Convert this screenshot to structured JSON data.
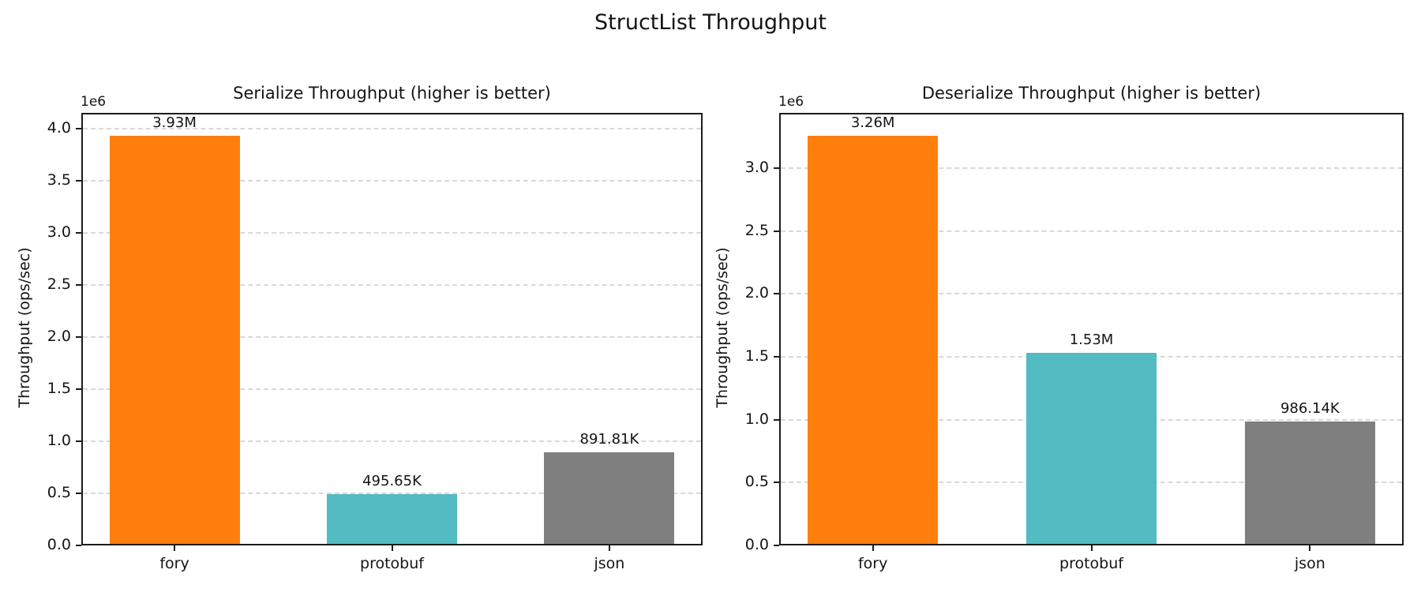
{
  "figure": {
    "title": "StructList Throughput"
  },
  "chart_data": [
    {
      "type": "bar",
      "title": "Serialize Throughput (higher is better)",
      "categories": [
        "fory",
        "protobuf",
        "json"
      ],
      "values": [
        3930000,
        495650,
        891810
      ],
      "bar_labels": [
        "3.93M",
        "495.65K",
        "891.81K"
      ],
      "bar_colors": [
        "#ff7f0e",
        "#53bcc2",
        "#7f7f7f"
      ],
      "xlabel": "",
      "ylabel": "Throughput (ops/sec)",
      "ylim": [
        0,
        4150000
      ],
      "ytick_values": [
        0,
        500000,
        1000000,
        1500000,
        2000000,
        2500000,
        3000000,
        3500000,
        4000000
      ],
      "ytick_labels": [
        "0.0",
        "0.5",
        "1.0",
        "1.5",
        "2.0",
        "2.5",
        "3.0",
        "3.5",
        "4.0"
      ],
      "scale_offset_label": "1e6",
      "grid": "horizontal-dashed",
      "legend": false
    },
    {
      "type": "bar",
      "title": "Deserialize Throughput (higher is better)",
      "categories": [
        "fory",
        "protobuf",
        "json"
      ],
      "values": [
        3260000,
        1530000,
        986140
      ],
      "bar_labels": [
        "3.26M",
        "1.53M",
        "986.14K"
      ],
      "bar_colors": [
        "#ff7f0e",
        "#53bcc2",
        "#7f7f7f"
      ],
      "xlabel": "",
      "ylabel": "Throughput (ops/sec)",
      "ylim": [
        0,
        3440000
      ],
      "ytick_values": [
        0,
        500000,
        1000000,
        1500000,
        2000000,
        2500000,
        3000000
      ],
      "ytick_labels": [
        "0.0",
        "0.5",
        "1.0",
        "1.5",
        "2.0",
        "2.5",
        "3.0"
      ],
      "scale_offset_label": "1e6",
      "grid": "horizontal-dashed",
      "legend": false
    }
  ],
  "colors": {
    "fory": "#ff7f0e",
    "protobuf": "#53bcc2",
    "json": "#7f7f7f",
    "grid": "#d9d9d9",
    "spine": "#1c1c1c",
    "text": "#141414",
    "background": "#ffffff"
  }
}
